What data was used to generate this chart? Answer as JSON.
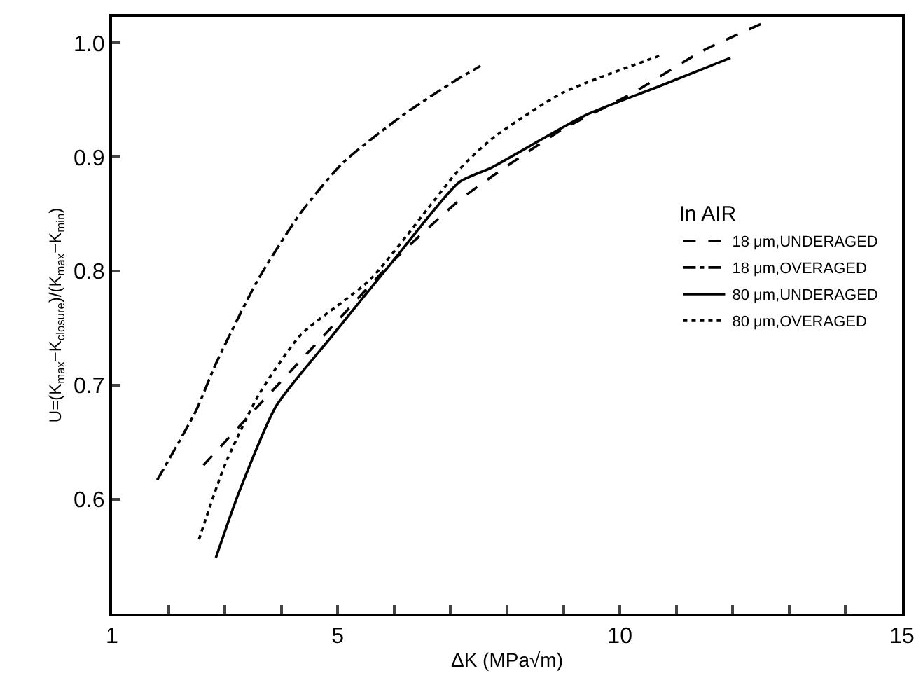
{
  "chart_data": {
    "type": "line",
    "xlabel": "ΔK (MPa√m)",
    "ylabel": "U=(K$_{max}$−K$_{closure}$)/(K$_{max}$−K$_{min}$)",
    "legend_title": "In AIR",
    "legend": "right",
    "xlim": [
      1,
      15
    ],
    "xticks": [
      1,
      {
        "value": 2,
        "label": null
      },
      {
        "value": 3,
        "label": null
      },
      {
        "value": 4,
        "label": null
      },
      5,
      {
        "value": 6,
        "label": null
      },
      {
        "value": 7,
        "label": null
      },
      {
        "value": 8,
        "label": null
      },
      {
        "value": 9,
        "label": null
      },
      10,
      {
        "value": 11,
        "label": null
      },
      {
        "value": 12,
        "label": null
      },
      {
        "value": 13,
        "label": null
      },
      {
        "value": 14,
        "label": null
      },
      15
    ],
    "ylim": [
      0.5,
      1.023
    ],
    "yticks": [
      0.6,
      0.7,
      0.8,
      0.9,
      {
        "value": 1.0,
        "label": "1.0"
      }
    ],
    "series": [
      {
        "name": "18 μm,UNDERAGED",
        "color": "#000000",
        "line_style": "dashed",
        "x": [
          2.62,
          3.59,
          4.91,
          5.98,
          7.15,
          7.73,
          8.97,
          10.22,
          11.46,
          12.56
        ],
        "values": [
          0.63,
          0.682,
          0.752,
          0.809,
          0.862,
          0.883,
          0.924,
          0.956,
          0.993,
          1.018
        ]
      },
      {
        "name": "18 μm,OVERAGED",
        "color": "#000000",
        "line_style": "dashdot",
        "x": [
          1.8,
          2.49,
          2.84,
          3.59,
          4.34,
          5.09,
          6.16,
          7.08,
          7.53
        ],
        "values": [
          0.617,
          0.678,
          0.719,
          0.793,
          0.851,
          0.895,
          0.937,
          0.967,
          0.98
        ]
      },
      {
        "name": "80 μm,UNDERAGED",
        "color": "#000000",
        "line_style": "solid",
        "x": [
          2.84,
          3.24,
          3.91,
          4.91,
          5.98,
          7.15,
          7.73,
          9.4,
          10.64,
          11.96
        ],
        "values": [
          0.549,
          0.605,
          0.682,
          0.744,
          0.809,
          0.878,
          0.891,
          0.937,
          0.961,
          0.987
        ]
      },
      {
        "name": "80 μm,OVERAGED",
        "color": "#000000",
        "line_style": "dotted",
        "x": [
          2.54,
          2.99,
          3.59,
          4.34,
          5.58,
          7.15,
          7.73,
          8.97,
          10.77
        ],
        "values": [
          0.565,
          0.629,
          0.691,
          0.744,
          0.793,
          0.889,
          0.916,
          0.956,
          0.99
        ]
      }
    ]
  }
}
